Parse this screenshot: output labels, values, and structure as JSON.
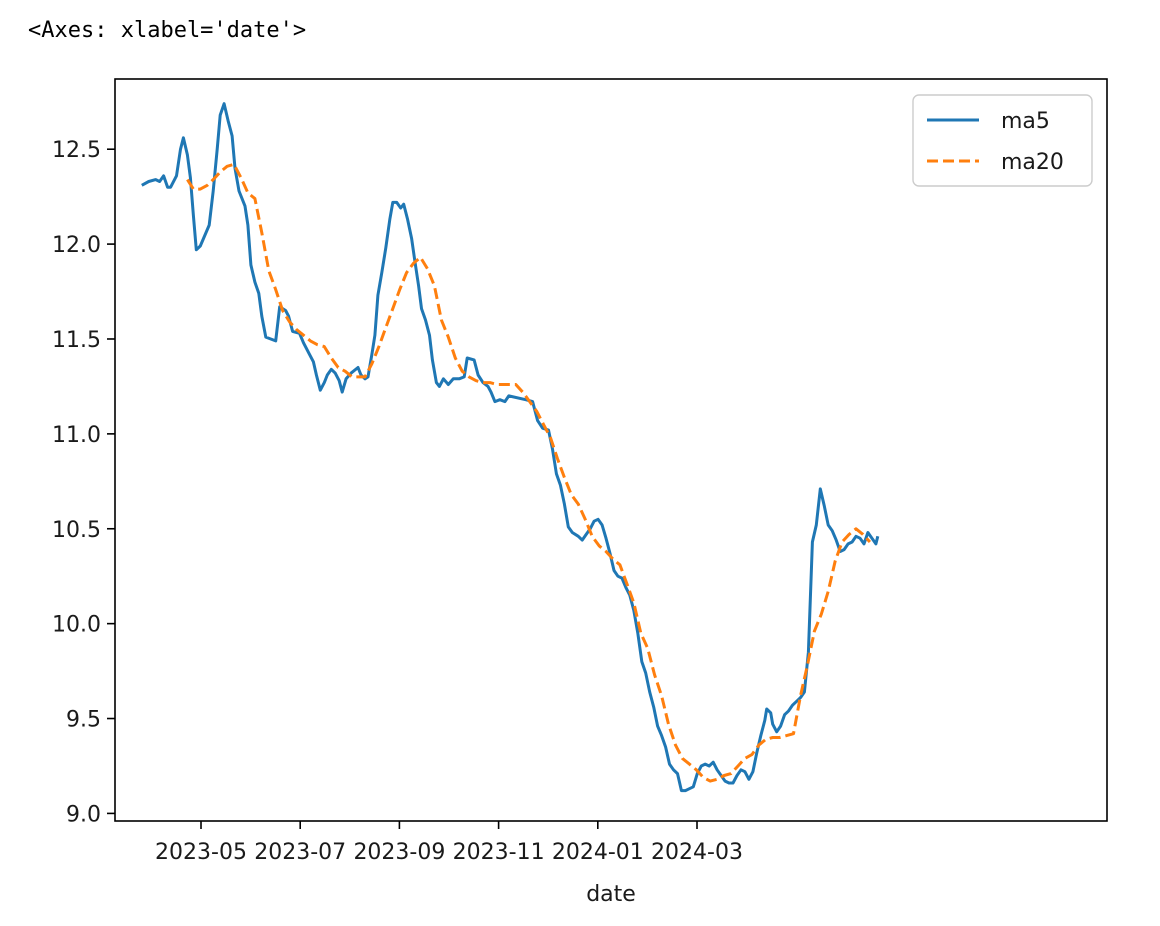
{
  "cell_output": "<Axes: xlabel='date'>",
  "chart_data": {
    "type": "line",
    "title": "",
    "xlabel": "date",
    "ylabel": "",
    "xlim": [
      52.0,
      62.0
    ],
    "ylim": [
      8.96,
      12.87
    ],
    "x_ticks": [
      {
        "pos": 52.867,
        "label": "2023-05"
      },
      {
        "pos": 53.867,
        "label": "2023-07"
      },
      {
        "pos": 54.867,
        "label": "2023-09"
      },
      {
        "pos": 55.867,
        "label": "2023-11"
      },
      {
        "pos": 56.867,
        "label": "2024-01"
      },
      {
        "pos": 57.867,
        "label": "2024-03"
      }
    ],
    "y_ticks": [
      {
        "pos": 9.0,
        "label": "9.0"
      },
      {
        "pos": 9.5,
        "label": "9.5"
      },
      {
        "pos": 10.0,
        "label": "10.0"
      },
      {
        "pos": 10.5,
        "label": "10.5"
      },
      {
        "pos": 11.0,
        "label": "11.0"
      },
      {
        "pos": 11.5,
        "label": "11.5"
      },
      {
        "pos": 12.0,
        "label": "12.0"
      },
      {
        "pos": 12.5,
        "label": "12.5"
      }
    ],
    "legend_position": "top-right",
    "series": [
      {
        "name": "ma5",
        "color": "#1f77b4",
        "style": "solid",
        "points": [
          [
            52.27,
            12.31
          ],
          [
            52.34,
            12.33
          ],
          [
            52.41,
            12.34
          ],
          [
            52.45,
            12.33
          ],
          [
            52.49,
            12.36
          ],
          [
            52.53,
            12.3
          ],
          [
            52.56,
            12.3
          ],
          [
            52.62,
            12.36
          ],
          [
            52.66,
            12.5
          ],
          [
            52.69,
            12.56
          ],
          [
            52.73,
            12.47
          ],
          [
            52.76,
            12.35
          ],
          [
            52.79,
            12.15
          ],
          [
            52.82,
            11.97
          ],
          [
            52.86,
            11.99
          ],
          [
            52.95,
            12.1
          ],
          [
            52.99,
            12.28
          ],
          [
            53.03,
            12.5
          ],
          [
            53.06,
            12.68
          ],
          [
            53.1,
            12.74
          ],
          [
            53.14,
            12.65
          ],
          [
            53.18,
            12.57
          ],
          [
            53.21,
            12.4
          ],
          [
            53.25,
            12.28
          ],
          [
            53.31,
            12.2
          ],
          [
            53.34,
            12.1
          ],
          [
            53.37,
            11.89
          ],
          [
            53.41,
            11.8
          ],
          [
            53.45,
            11.74
          ],
          [
            53.48,
            11.62
          ],
          [
            53.52,
            11.51
          ],
          [
            53.62,
            11.49
          ],
          [
            53.66,
            11.67
          ],
          [
            53.72,
            11.65
          ],
          [
            53.75,
            11.62
          ],
          [
            53.79,
            11.54
          ],
          [
            53.86,
            11.53
          ],
          [
            53.9,
            11.48
          ],
          [
            53.96,
            11.42
          ],
          [
            54.0,
            11.38
          ],
          [
            54.03,
            11.31
          ],
          [
            54.07,
            11.23
          ],
          [
            54.11,
            11.27
          ],
          [
            54.14,
            11.31
          ],
          [
            54.18,
            11.34
          ],
          [
            54.22,
            11.32
          ],
          [
            54.26,
            11.28
          ],
          [
            54.29,
            11.22
          ],
          [
            54.33,
            11.29
          ],
          [
            54.38,
            11.32
          ],
          [
            54.45,
            11.35
          ],
          [
            54.48,
            11.31
          ],
          [
            54.52,
            11.29
          ],
          [
            54.55,
            11.3
          ],
          [
            54.59,
            11.42
          ],
          [
            54.62,
            11.52
          ],
          [
            54.65,
            11.73
          ],
          [
            54.69,
            11.85
          ],
          [
            54.73,
            11.98
          ],
          [
            54.77,
            12.13
          ],
          [
            54.8,
            12.22
          ],
          [
            54.84,
            12.22
          ],
          [
            54.88,
            12.19
          ],
          [
            54.91,
            12.21
          ],
          [
            54.95,
            12.13
          ],
          [
            54.99,
            12.03
          ],
          [
            55.02,
            11.92
          ],
          [
            55.06,
            11.78
          ],
          [
            55.09,
            11.66
          ],
          [
            55.13,
            11.6
          ],
          [
            55.17,
            11.52
          ],
          [
            55.2,
            11.39
          ],
          [
            55.24,
            11.27
          ],
          [
            55.27,
            11.25
          ],
          [
            55.31,
            11.29
          ],
          [
            55.36,
            11.26
          ],
          [
            55.41,
            11.29
          ],
          [
            55.47,
            11.29
          ],
          [
            55.52,
            11.3
          ],
          [
            55.55,
            11.4
          ],
          [
            55.62,
            11.39
          ],
          [
            55.66,
            11.31
          ],
          [
            55.71,
            11.27
          ],
          [
            55.76,
            11.25
          ],
          [
            55.79,
            11.22
          ],
          [
            55.83,
            11.17
          ],
          [
            55.88,
            11.18
          ],
          [
            55.93,
            11.17
          ],
          [
            55.97,
            11.2
          ],
          [
            56.14,
            11.18
          ],
          [
            56.21,
            11.17
          ],
          [
            56.26,
            11.07
          ],
          [
            56.31,
            11.03
          ],
          [
            56.37,
            11.02
          ],
          [
            56.41,
            10.92
          ],
          [
            56.45,
            10.79
          ],
          [
            56.49,
            10.73
          ],
          [
            56.53,
            10.63
          ],
          [
            56.57,
            10.51
          ],
          [
            56.61,
            10.48
          ],
          [
            56.67,
            10.46
          ],
          [
            56.71,
            10.44
          ],
          [
            56.75,
            10.47
          ],
          [
            56.79,
            10.5
          ],
          [
            56.83,
            10.54
          ],
          [
            56.87,
            10.55
          ],
          [
            56.91,
            10.52
          ],
          [
            56.95,
            10.45
          ],
          [
            56.99,
            10.37
          ],
          [
            57.03,
            10.28
          ],
          [
            57.07,
            10.25
          ],
          [
            57.11,
            10.24
          ],
          [
            57.15,
            10.19
          ],
          [
            57.19,
            10.15
          ],
          [
            57.23,
            10.07
          ],
          [
            57.27,
            9.95
          ],
          [
            57.31,
            9.8
          ],
          [
            57.35,
            9.74
          ],
          [
            57.39,
            9.64
          ],
          [
            57.43,
            9.56
          ],
          [
            57.47,
            9.46
          ],
          [
            57.51,
            9.41
          ],
          [
            57.55,
            9.35
          ],
          [
            57.59,
            9.26
          ],
          [
            57.63,
            9.23
          ],
          [
            57.67,
            9.21
          ],
          [
            57.71,
            9.12
          ],
          [
            57.75,
            9.12
          ],
          [
            57.79,
            9.13
          ],
          [
            57.83,
            9.14
          ],
          [
            57.87,
            9.21
          ],
          [
            57.91,
            9.25
          ],
          [
            57.95,
            9.26
          ],
          [
            57.99,
            9.25
          ],
          [
            58.03,
            9.27
          ],
          [
            58.07,
            9.23
          ],
          [
            58.11,
            9.2
          ],
          [
            58.15,
            9.17
          ],
          [
            58.19,
            9.16
          ],
          [
            58.23,
            9.16
          ],
          [
            58.27,
            9.2
          ],
          [
            58.31,
            9.23
          ],
          [
            58.35,
            9.22
          ],
          [
            58.39,
            9.18
          ],
          [
            58.43,
            9.22
          ],
          [
            58.47,
            9.32
          ],
          [
            58.51,
            9.41
          ],
          [
            58.55,
            9.49
          ],
          [
            58.57,
            9.55
          ],
          [
            58.61,
            9.53
          ],
          [
            58.63,
            9.47
          ],
          [
            58.67,
            9.43
          ],
          [
            58.71,
            9.46
          ],
          [
            58.75,
            9.52
          ],
          [
            58.79,
            9.54
          ],
          [
            58.83,
            9.57
          ],
          [
            58.87,
            9.59
          ],
          [
            58.91,
            9.61
          ],
          [
            58.95,
            9.64
          ],
          [
            58.99,
            9.85
          ],
          [
            59.03,
            10.43
          ],
          [
            59.07,
            10.52
          ],
          [
            59.11,
            10.71
          ],
          [
            59.15,
            10.62
          ],
          [
            59.19,
            10.52
          ],
          [
            59.23,
            10.49
          ],
          [
            59.27,
            10.44
          ],
          [
            59.31,
            10.38
          ],
          [
            59.35,
            10.39
          ],
          [
            59.39,
            10.42
          ],
          [
            59.43,
            10.43
          ],
          [
            59.47,
            10.46
          ],
          [
            59.51,
            10.45
          ],
          [
            59.55,
            10.42
          ],
          [
            59.59,
            10.48
          ],
          [
            59.63,
            10.45
          ],
          [
            59.67,
            10.42
          ],
          [
            59.69,
            10.46
          ]
        ]
      },
      {
        "name": "ma20",
        "color": "#ff7f0e",
        "style": "dashed",
        "points": [
          [
            52.73,
            12.34
          ],
          [
            52.79,
            12.29
          ],
          [
            52.86,
            12.29
          ],
          [
            52.93,
            12.31
          ],
          [
            52.99,
            12.34
          ],
          [
            53.06,
            12.38
          ],
          [
            53.13,
            12.41
          ],
          [
            53.2,
            12.42
          ],
          [
            53.27,
            12.35
          ],
          [
            53.34,
            12.27
          ],
          [
            53.41,
            12.24
          ],
          [
            53.48,
            12.06
          ],
          [
            53.55,
            11.86
          ],
          [
            53.62,
            11.76
          ],
          [
            53.69,
            11.65
          ],
          [
            53.76,
            11.59
          ],
          [
            53.83,
            11.55
          ],
          [
            53.9,
            11.52
          ],
          [
            53.97,
            11.49
          ],
          [
            54.04,
            11.47
          ],
          [
            54.11,
            11.46
          ],
          [
            54.18,
            11.4
          ],
          [
            54.25,
            11.35
          ],
          [
            54.32,
            11.33
          ],
          [
            54.39,
            11.3
          ],
          [
            54.45,
            11.3
          ],
          [
            54.52,
            11.3
          ],
          [
            54.59,
            11.37
          ],
          [
            54.66,
            11.46
          ],
          [
            54.73,
            11.56
          ],
          [
            54.8,
            11.66
          ],
          [
            54.87,
            11.76
          ],
          [
            54.94,
            11.85
          ],
          [
            55.01,
            11.9
          ],
          [
            55.08,
            11.93
          ],
          [
            55.15,
            11.87
          ],
          [
            55.22,
            11.78
          ],
          [
            55.29,
            11.6
          ],
          [
            55.36,
            11.51
          ],
          [
            55.43,
            11.4
          ],
          [
            55.5,
            11.33
          ],
          [
            55.57,
            11.3
          ],
          [
            55.64,
            11.28
          ],
          [
            55.71,
            11.27
          ],
          [
            55.78,
            11.27
          ],
          [
            55.85,
            11.26
          ],
          [
            55.92,
            11.26
          ],
          [
            56.04,
            11.26
          ],
          [
            56.11,
            11.22
          ],
          [
            56.18,
            11.17
          ],
          [
            56.25,
            11.12
          ],
          [
            56.32,
            11.05
          ],
          [
            56.39,
            10.98
          ],
          [
            56.46,
            10.87
          ],
          [
            56.53,
            10.77
          ],
          [
            56.6,
            10.68
          ],
          [
            56.67,
            10.63
          ],
          [
            56.74,
            10.55
          ],
          [
            56.81,
            10.46
          ],
          [
            56.88,
            10.41
          ],
          [
            56.95,
            10.38
          ],
          [
            57.02,
            10.34
          ],
          [
            57.09,
            10.31
          ],
          [
            57.16,
            10.21
          ],
          [
            57.23,
            10.11
          ],
          [
            57.3,
            9.95
          ],
          [
            57.37,
            9.87
          ],
          [
            57.44,
            9.73
          ],
          [
            57.51,
            9.62
          ],
          [
            57.58,
            9.47
          ],
          [
            57.65,
            9.36
          ],
          [
            57.72,
            9.29
          ],
          [
            57.79,
            9.26
          ],
          [
            57.86,
            9.23
          ],
          [
            57.93,
            9.19
          ],
          [
            58.0,
            9.17
          ],
          [
            58.07,
            9.18
          ],
          [
            58.14,
            9.2
          ],
          [
            58.21,
            9.21
          ],
          [
            58.28,
            9.25
          ],
          [
            58.35,
            9.29
          ],
          [
            58.42,
            9.31
          ],
          [
            58.49,
            9.36
          ],
          [
            58.56,
            9.39
          ],
          [
            58.63,
            9.4
          ],
          [
            58.7,
            9.4
          ],
          [
            58.77,
            9.41
          ],
          [
            58.84,
            9.42
          ],
          [
            58.91,
            9.62
          ],
          [
            58.98,
            9.78
          ],
          [
            59.05,
            9.96
          ],
          [
            59.12,
            10.05
          ],
          [
            59.19,
            10.17
          ],
          [
            59.26,
            10.33
          ],
          [
            59.33,
            10.43
          ],
          [
            59.4,
            10.47
          ],
          [
            59.47,
            10.5
          ],
          [
            59.54,
            10.47
          ],
          [
            59.61,
            10.43
          ]
        ]
      }
    ]
  }
}
